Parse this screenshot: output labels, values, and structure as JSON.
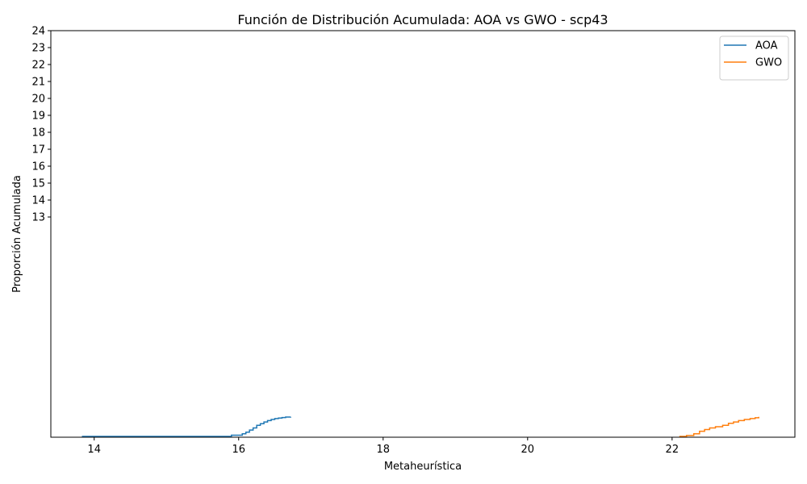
{
  "chart_data": {
    "type": "line",
    "title": "Función de Distribución Acumulada: AOA vs GWO - scp43",
    "xlabel": "Metaheurística",
    "ylabel": "Proporción Acumulada",
    "xlim": [
      13.4,
      23.7
    ],
    "ylim": [
      0,
      24
    ],
    "xticks": [
      14,
      16,
      18,
      20,
      22
    ],
    "yticks": [
      13,
      14,
      15,
      16,
      17,
      18,
      19,
      20,
      21,
      22,
      23,
      24
    ],
    "legend_position": "top-right",
    "grid": false,
    "series": [
      {
        "name": "AOA",
        "color": "#1f77b4",
        "step": "post",
        "x": [
          13.83,
          15.9,
          16.05,
          16.1,
          16.15,
          16.2,
          16.25,
          16.3,
          16.35,
          16.4,
          16.45,
          16.5,
          16.55,
          16.6,
          16.65,
          16.72
        ],
        "y": [
          0.05,
          0.12,
          0.2,
          0.3,
          0.42,
          0.55,
          0.7,
          0.8,
          0.9,
          0.98,
          1.05,
          1.1,
          1.13,
          1.16,
          1.19,
          1.2
        ]
      },
      {
        "name": "GWO",
        "color": "#ff7f0e",
        "step": "post",
        "x": [
          22.1,
          22.2,
          22.3,
          22.38,
          22.45,
          22.52,
          22.6,
          22.7,
          22.78,
          22.85,
          22.92,
          23.0,
          23.08,
          23.15,
          23.2
        ],
        "y": [
          0.05,
          0.1,
          0.2,
          0.35,
          0.45,
          0.55,
          0.62,
          0.7,
          0.82,
          0.9,
          0.98,
          1.05,
          1.1,
          1.15,
          1.2
        ]
      }
    ]
  }
}
